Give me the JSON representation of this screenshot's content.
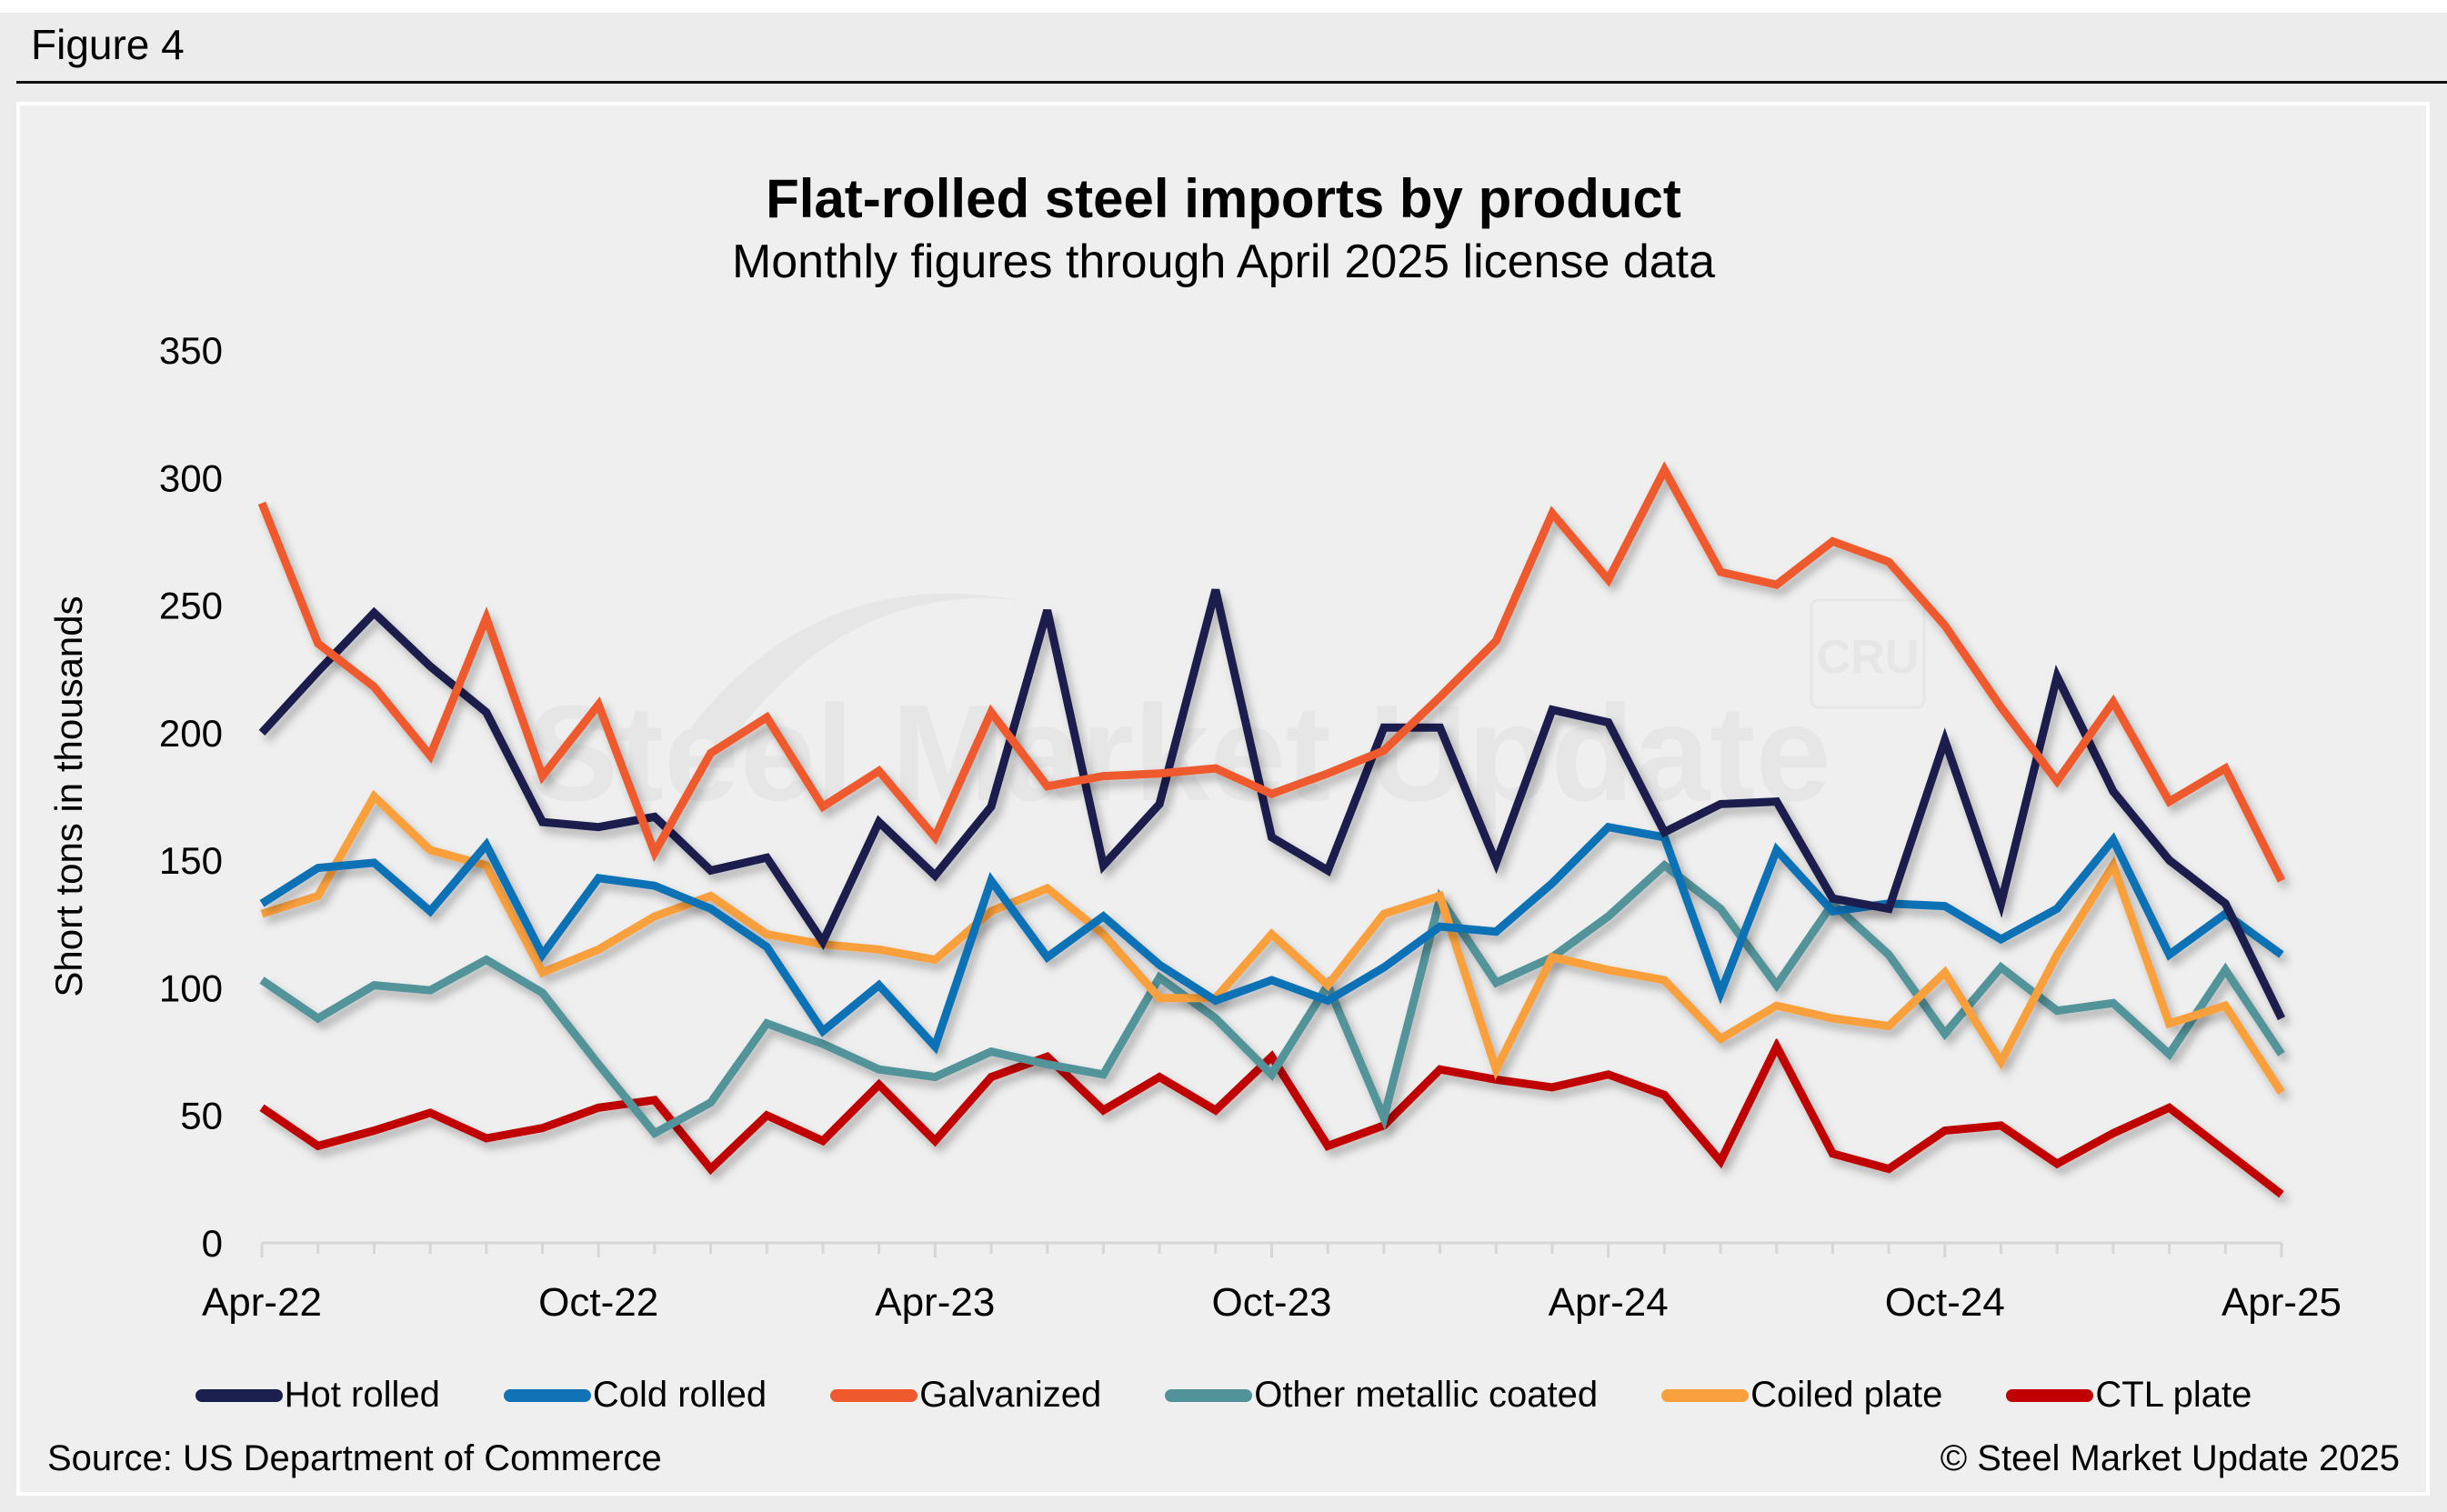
{
  "figure_label": "Figure 4",
  "source": "Source: US Department of Commerce",
  "copyright": "© Steel Market Update 2025",
  "watermark": {
    "text": "Steel Market Update",
    "logo": "CRU"
  },
  "chart_data": {
    "type": "line",
    "title": "Flat-rolled steel imports by product",
    "subtitle": "Monthly figures through April 2025 license data",
    "xlabel": "",
    "ylabel": "Short tons in thousands",
    "ylim": [
      0,
      350
    ],
    "yticks": [
      0,
      50,
      100,
      150,
      200,
      250,
      300,
      350
    ],
    "x": [
      "Apr-22",
      "May-22",
      "Jun-22",
      "Jul-22",
      "Aug-22",
      "Sep-22",
      "Oct-22",
      "Nov-22",
      "Dec-22",
      "Jan-23",
      "Feb-23",
      "Mar-23",
      "Apr-23",
      "May-23",
      "Jun-23",
      "Jul-23",
      "Aug-23",
      "Sep-23",
      "Oct-23",
      "Nov-23",
      "Dec-23",
      "Jan-24",
      "Feb-24",
      "Mar-24",
      "Apr-24",
      "May-24",
      "Jun-24",
      "Jul-24",
      "Aug-24",
      "Sep-24",
      "Oct-24",
      "Nov-24",
      "Dec-24",
      "Jan-25",
      "Feb-25",
      "Mar-25",
      "Apr-25"
    ],
    "xtick_labels": [
      "Apr-22",
      "Oct-22",
      "Apr-23",
      "Oct-23",
      "Apr-24",
      "Oct-24",
      "Apr-25"
    ],
    "xtick_label_indices": [
      0,
      6,
      12,
      18,
      24,
      30,
      36
    ],
    "grid": false,
    "legend_position": "bottom",
    "series": [
      {
        "name": "Hot rolled",
        "color": "#1a1f4e",
        "values": [
          200,
          224,
          247,
          226,
          208,
          165,
          163,
          167,
          146,
          151,
          118,
          165,
          144,
          171,
          248,
          148,
          172,
          256,
          159,
          146,
          202,
          202,
          149,
          209,
          204,
          161,
          172,
          173,
          135,
          131,
          197,
          133,
          222,
          177,
          150,
          133,
          88
        ]
      },
      {
        "name": "Cold rolled",
        "color": "#1172b5",
        "values": [
          133,
          147,
          149,
          130,
          156,
          113,
          143,
          140,
          131,
          116,
          83,
          101,
          77,
          142,
          112,
          128,
          109,
          95,
          103,
          95,
          108,
          124,
          122,
          141,
          163,
          159,
          98,
          154,
          130,
          133,
          132,
          119,
          131,
          158,
          113,
          129,
          113
        ]
      },
      {
        "name": "Galvanized",
        "color": "#ee5a2d",
        "values": [
          290,
          235,
          218,
          191,
          245,
          183,
          211,
          153,
          192,
          206,
          171,
          185,
          159,
          208,
          179,
          183,
          184,
          186,
          176,
          184,
          193,
          214,
          236,
          286,
          260,
          303,
          263,
          258,
          275,
          267,
          242,
          210,
          181,
          212,
          173,
          186,
          142
        ]
      },
      {
        "name": "Other metallic coated",
        "color": "#52939a",
        "values": [
          103,
          88,
          101,
          99,
          111,
          98,
          70,
          43,
          55,
          86,
          78,
          68,
          65,
          75,
          70,
          66,
          104,
          88,
          66,
          101,
          49,
          135,
          102,
          112,
          128,
          148,
          131,
          101,
          133,
          113,
          82,
          108,
          91,
          94,
          74,
          107,
          74
        ]
      },
      {
        "name": "Coiled plate",
        "color": "#f9a03e",
        "values": [
          129,
          136,
          175,
          154,
          148,
          106,
          115,
          128,
          136,
          121,
          117,
          115,
          111,
          130,
          139,
          121,
          96,
          96,
          121,
          101,
          129,
          136,
          68,
          112,
          107,
          103,
          80,
          93,
          88,
          85,
          106,
          71,
          113,
          148,
          86,
          93,
          59
        ]
      },
      {
        "name": "CTL plate",
        "color": "#c00000",
        "values": [
          53,
          38,
          44,
          51,
          41,
          45,
          53,
          56,
          29,
          50,
          40,
          62,
          40,
          65,
          73,
          52,
          65,
          52,
          73,
          38,
          46,
          68,
          64,
          61,
          66,
          58,
          32,
          77,
          35,
          29,
          44,
          46,
          31,
          43,
          53,
          36,
          19
        ]
      }
    ]
  }
}
